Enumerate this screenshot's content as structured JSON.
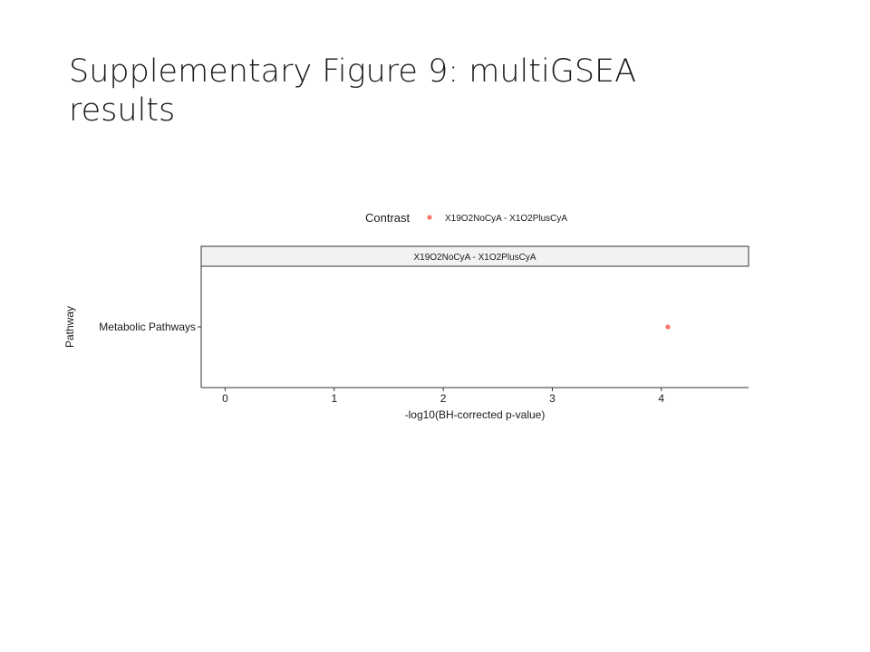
{
  "slide": {
    "title": "Supplementary Figure 9: multiGSEA results"
  },
  "chart_data": {
    "type": "scatter",
    "title": "",
    "xlabel": "-log10(BH-corrected p-value)",
    "ylabel": "Pathway",
    "xlim": [
      -0.22,
      4.8
    ],
    "x_ticks": [
      0,
      1,
      2,
      3,
      4
    ],
    "x_tick_labels": [
      "0",
      "1",
      "2",
      "3",
      "4"
    ],
    "categories": [
      "Metabolic Pathways"
    ],
    "legend": {
      "title": "Contrast",
      "position": "top",
      "entries": [
        "X19O2NoCyA - X1O2PlusCyA"
      ]
    },
    "facet_label": "X19O2NoCyA - X1O2PlusCyA",
    "grid": false,
    "series": [
      {
        "name": "X19O2NoCyA - X1O2PlusCyA",
        "color": "#f8766d",
        "points": [
          {
            "pathway": "Metabolic Pathways",
            "x": 4.06
          }
        ]
      }
    ]
  }
}
